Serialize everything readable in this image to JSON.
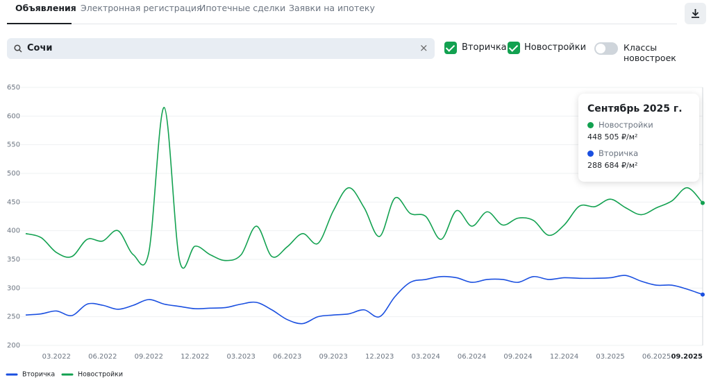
{
  "tabs": [
    "Объявления",
    "Электронная регистрация",
    "Ипотечные сделки",
    "Заявки на ипотеку"
  ],
  "search": {
    "value": "Сочи"
  },
  "filters": {
    "checkboxes": [
      "Вторичка",
      "Новостройки"
    ],
    "toggle": "Классы новостроек"
  },
  "chart_data": {
    "type": "line",
    "grid": true,
    "categories": [
      null,
      null,
      "03.2022",
      null,
      null,
      "06.2022",
      null,
      null,
      "09.2022",
      null,
      null,
      "12.2022",
      null,
      null,
      "03.2023",
      null,
      null,
      "06.2023",
      null,
      null,
      "09.2023",
      null,
      null,
      "12.2023",
      null,
      null,
      "03.2024",
      null,
      null,
      "06.2024",
      null,
      null,
      "09.2024",
      null,
      null,
      "12.2024",
      null,
      null,
      "03.2025",
      null,
      null,
      "06.2025",
      null,
      null,
      "09.2025"
    ],
    "ylim": [
      200,
      650
    ],
    "yticks": [
      200,
      250,
      300,
      350,
      400,
      450,
      500,
      550,
      600,
      650
    ],
    "series": [
      {
        "name": "Вторичка",
        "color": "#1a4fe0",
        "values": [
          253,
          255,
          260,
          252,
          272,
          270,
          263,
          270,
          280,
          272,
          268,
          264,
          265,
          266,
          272,
          275,
          262,
          245,
          238,
          250,
          253,
          255,
          262,
          250,
          285,
          310,
          315,
          320,
          318,
          310,
          315,
          315,
          310,
          320,
          315,
          318,
          317,
          317,
          318,
          322,
          312,
          305,
          305,
          298,
          288.684
        ]
      },
      {
        "name": "Новостройки",
        "color": "#12a150",
        "values": [
          395,
          388,
          362,
          355,
          385,
          382,
          400,
          358,
          362,
          615,
          348,
          373,
          358,
          348,
          358,
          408,
          355,
          372,
          395,
          378,
          435,
          475,
          440,
          390,
          457,
          430,
          425,
          385,
          435,
          408,
          433,
          410,
          422,
          418,
          392,
          410,
          443,
          442,
          455,
          440,
          428,
          440,
          452,
          475,
          448.505
        ]
      }
    ],
    "tooltip": {
      "title": "Сентябрь 2025 г.",
      "value_labels": [
        "448 505 ₽/м²",
        "288 684 ₽/м²"
      ]
    }
  }
}
